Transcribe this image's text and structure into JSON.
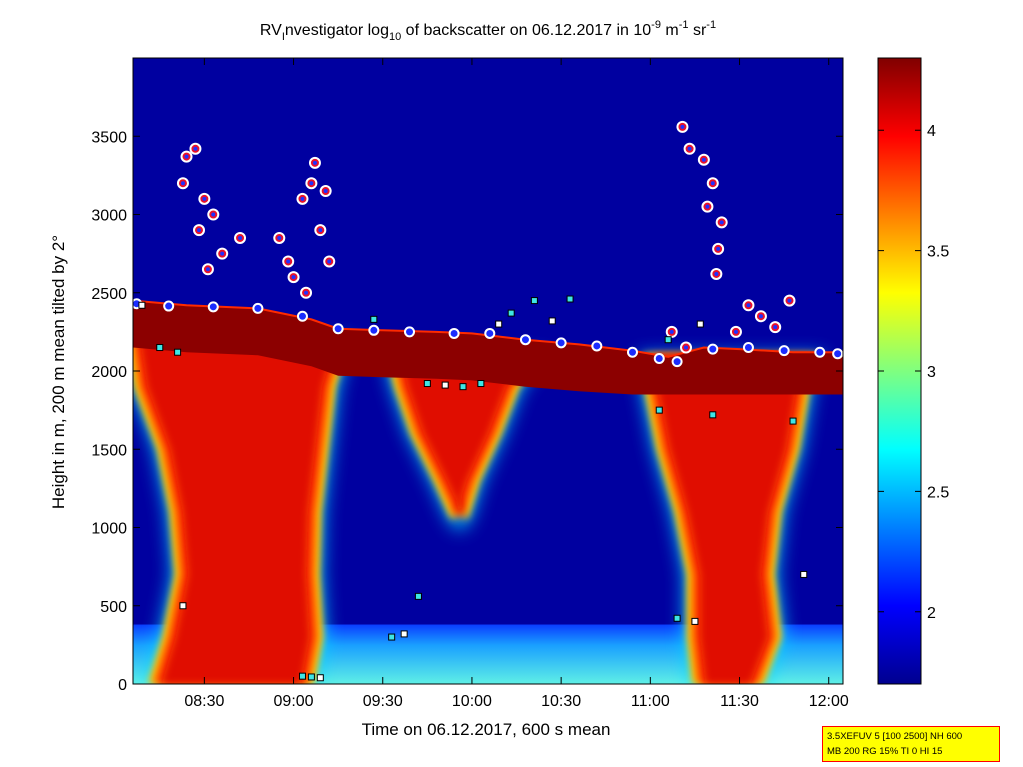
{
  "chart_data": {
    "type": "heatmap",
    "title": {
      "prefix": "RV",
      "sub_i": "I",
      "part1": "nvestigator log",
      "sub_10": "10",
      "part2": " of backscatter on 06.12.2017 in 10",
      "sup_1": "-9",
      "part3": " m",
      "sup_2": "-1",
      "part4": " sr",
      "sup_3": "-1"
    },
    "xlabel": "Time on 06.12.2017, 600 s mean",
    "ylabel": "Height in m, 200 m mean tilted by 2°",
    "x_range_hours": [
      8.1,
      12.08
    ],
    "y_range_m": [
      0,
      4000
    ],
    "x_ticks": [
      {
        "label": "08:30",
        "value": 8.5
      },
      {
        "label": "09:00",
        "value": 9.0
      },
      {
        "label": "09:30",
        "value": 9.5
      },
      {
        "label": "10:00",
        "value": 10.0
      },
      {
        "label": "10:30",
        "value": 10.5
      },
      {
        "label": "11:00",
        "value": 11.0
      },
      {
        "label": "11:30",
        "value": 11.5
      },
      {
        "label": "12:00",
        "value": 12.0
      }
    ],
    "y_ticks": [
      {
        "label": "0",
        "value": 0
      },
      {
        "label": "500",
        "value": 500
      },
      {
        "label": "1000",
        "value": 1000
      },
      {
        "label": "1500",
        "value": 1500
      },
      {
        "label": "2000",
        "value": 2000
      },
      {
        "label": "2500",
        "value": 2500
      },
      {
        "label": "3000",
        "value": 3000
      },
      {
        "label": "3500",
        "value": 3500
      }
    ],
    "colorbar": {
      "range": [
        1.7,
        4.3
      ],
      "ticks": [
        {
          "label": "2",
          "value": 2
        },
        {
          "label": "2.5",
          "value": 2.5
        },
        {
          "label": "3",
          "value": 3
        },
        {
          "label": "3.5",
          "value": 3.5
        },
        {
          "label": "4",
          "value": 4
        }
      ],
      "colormap": "jet"
    },
    "background_value": 1.75,
    "surface_layer": {
      "top_m": 380,
      "value": 2.6
    },
    "cloud_top_m": [
      [
        8.1,
        2450
      ],
      [
        8.4,
        2420
      ],
      [
        8.8,
        2400
      ],
      [
        9.1,
        2330
      ],
      [
        9.25,
        2270
      ],
      [
        9.5,
        2260
      ],
      [
        9.8,
        2250
      ],
      [
        10.0,
        2240
      ],
      [
        10.3,
        2200
      ],
      [
        10.6,
        2170
      ],
      [
        10.9,
        2130
      ],
      [
        11.1,
        2090
      ],
      [
        11.3,
        2150
      ],
      [
        11.5,
        2140
      ],
      [
        11.8,
        2120
      ],
      [
        12.08,
        2120
      ]
    ],
    "plumes": [
      {
        "name": "plume-1",
        "t_start": 8.1,
        "t_end": 9.25,
        "base_m": 0,
        "profile": [
          [
            0,
            8.2,
            9.1
          ],
          [
            300,
            8.28,
            9.15
          ],
          [
            700,
            8.35,
            9.13
          ],
          [
            1100,
            8.32,
            9.14
          ],
          [
            1500,
            8.25,
            9.18
          ],
          [
            1900,
            8.12,
            9.22
          ],
          [
            2200,
            8.08,
            9.3
          ]
        ]
      },
      {
        "name": "plume-2",
        "t_start": 9.55,
        "t_end": 10.35,
        "base_m": 1050,
        "profile": [
          [
            1050,
            9.9,
            9.96
          ],
          [
            1300,
            9.8,
            10.03
          ],
          [
            1600,
            9.67,
            10.15
          ],
          [
            1900,
            9.58,
            10.25
          ],
          [
            2100,
            9.54,
            10.4
          ]
        ]
      },
      {
        "name": "plume-3",
        "t_start": 10.95,
        "t_end": 11.85,
        "base_m": 0,
        "profile": [
          [
            0,
            11.25,
            11.62
          ],
          [
            300,
            11.22,
            11.72
          ],
          [
            700,
            11.22,
            11.68
          ],
          [
            1100,
            11.15,
            11.72
          ],
          [
            1500,
            11.05,
            11.82
          ],
          [
            1900,
            10.98,
            11.88
          ],
          [
            2100,
            10.97,
            11.95
          ]
        ]
      }
    ],
    "cloud_base_markers": [
      [
        8.12,
        2430
      ],
      [
        8.3,
        2415
      ],
      [
        8.55,
        2410
      ],
      [
        8.8,
        2400
      ],
      [
        9.05,
        2350
      ],
      [
        9.25,
        2270
      ],
      [
        9.45,
        2260
      ],
      [
        9.65,
        2250
      ],
      [
        9.9,
        2240
      ],
      [
        10.1,
        2240
      ],
      [
        10.3,
        2200
      ],
      [
        10.5,
        2180
      ],
      [
        10.7,
        2160
      ],
      [
        10.9,
        2120
      ],
      [
        11.05,
        2080
      ],
      [
        11.15,
        2060
      ],
      [
        11.35,
        2140
      ],
      [
        11.55,
        2150
      ],
      [
        11.75,
        2130
      ],
      [
        11.95,
        2120
      ],
      [
        12.05,
        2110
      ]
    ],
    "cloud_markers_upper": [
      [
        8.4,
        3370
      ],
      [
        8.45,
        3420
      ],
      [
        8.38,
        3200
      ],
      [
        8.5,
        3100
      ],
      [
        8.55,
        3000
      ],
      [
        8.47,
        2900
      ],
      [
        8.6,
        2750
      ],
      [
        8.7,
        2850
      ],
      [
        8.52,
        2650
      ],
      [
        8.92,
        2850
      ],
      [
        8.97,
        2700
      ],
      [
        9.0,
        2600
      ],
      [
        9.05,
        3100
      ],
      [
        9.1,
        3200
      ],
      [
        9.12,
        3330
      ],
      [
        9.18,
        3150
      ],
      [
        9.15,
        2900
      ],
      [
        9.2,
        2700
      ],
      [
        9.07,
        2500
      ],
      [
        11.18,
        3560
      ],
      [
        11.22,
        3420
      ],
      [
        11.3,
        3350
      ],
      [
        11.35,
        3200
      ],
      [
        11.32,
        3050
      ],
      [
        11.4,
        2950
      ],
      [
        11.38,
        2780
      ],
      [
        11.37,
        2620
      ],
      [
        11.55,
        2420
      ],
      [
        11.62,
        2350
      ],
      [
        11.78,
        2450
      ],
      [
        11.7,
        2280
      ],
      [
        11.2,
        2150
      ],
      [
        11.12,
        2250
      ],
      [
        11.48,
        2250
      ]
    ],
    "aerosol_markers": [
      [
        8.15,
        2420
      ],
      [
        8.25,
        2150
      ],
      [
        8.35,
        2120
      ],
      [
        8.38,
        500
      ],
      [
        9.05,
        50
      ],
      [
        9.1,
        45
      ],
      [
        9.15,
        40
      ],
      [
        9.45,
        2330
      ],
      [
        9.55,
        300
      ],
      [
        9.62,
        320
      ],
      [
        9.7,
        560
      ],
      [
        9.75,
        1920
      ],
      [
        9.85,
        1910
      ],
      [
        9.95,
        1900
      ],
      [
        10.05,
        1920
      ],
      [
        10.15,
        2300
      ],
      [
        10.22,
        2370
      ],
      [
        10.35,
        2450
      ],
      [
        10.45,
        2320
      ],
      [
        11.05,
        1750
      ],
      [
        11.15,
        420
      ],
      [
        11.25,
        400
      ],
      [
        11.35,
        1720
      ],
      [
        11.8,
        1680
      ],
      [
        11.86,
        700
      ],
      [
        10.55,
        2460
      ],
      [
        11.1,
        2200
      ],
      [
        11.28,
        2300
      ]
    ]
  },
  "info_box": {
    "line1": "3.5XEFUV 5 [100 2500] NH 600",
    "line2": "MB 200 RG 15% TI 0 HI 15"
  }
}
